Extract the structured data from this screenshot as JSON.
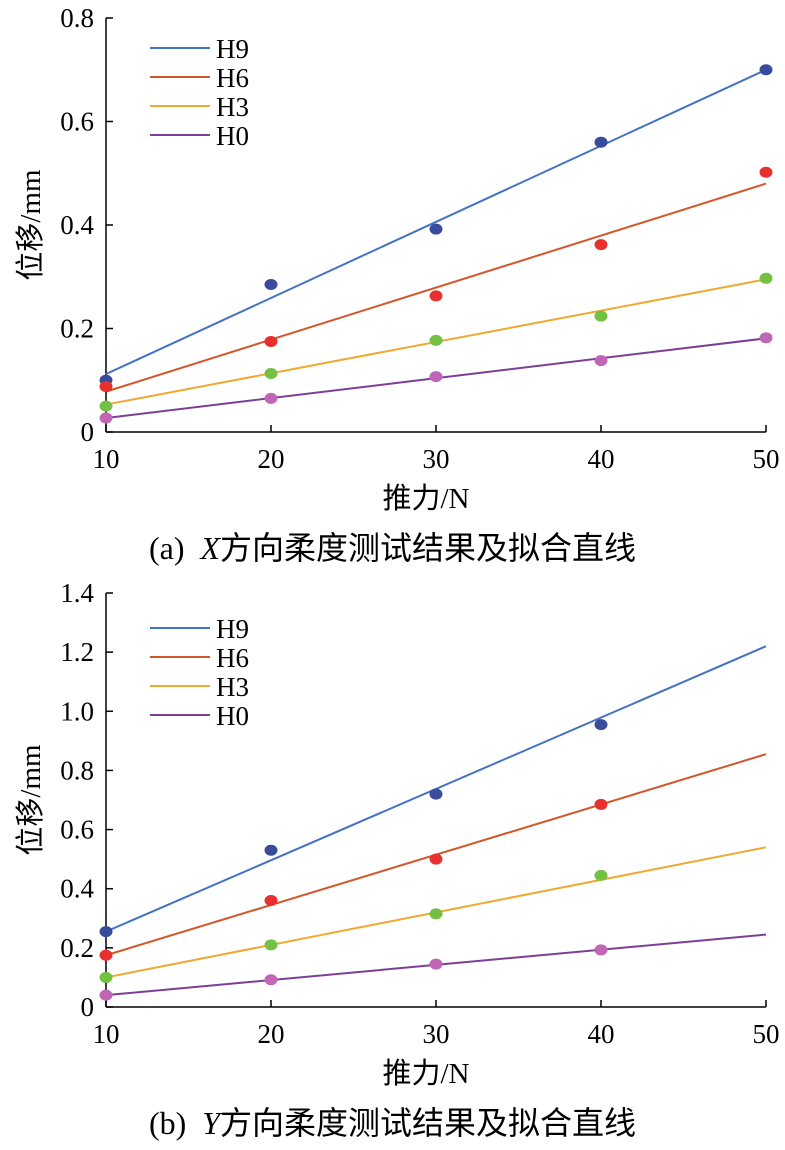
{
  "chart_data": [
    {
      "type": "line",
      "panel_label": "(a)",
      "caption_axis": "X",
      "caption_text": "方向柔度测试结果及拟合直线",
      "xlabel": "推力/N",
      "ylabel": "位移/mm",
      "xlim": [
        10,
        50
      ],
      "ylim": [
        0,
        0.8
      ],
      "xticks": [
        10,
        20,
        30,
        40,
        50
      ],
      "yticks": [
        0,
        0.2,
        0.4,
        0.6,
        0.8
      ],
      "ytick_labels": [
        "0",
        "0.2",
        "0.4",
        "0.6",
        "0.8"
      ],
      "legend_position": "top-left",
      "grid": false,
      "series": [
        {
          "name": "H9",
          "line_color": "#4472C4",
          "point_color": "#3A4A9C",
          "x": [
            10,
            20,
            30,
            40,
            50
          ],
          "points": [
            0.1,
            0.285,
            0.392,
            0.56,
            0.7
          ],
          "fit": [
            0.112,
            0.7
          ]
        },
        {
          "name": "H6",
          "line_color": "#D2572B",
          "point_color": "#E8302E",
          "x": [
            10,
            20,
            30,
            40,
            50
          ],
          "points": [
            0.088,
            0.175,
            0.263,
            0.362,
            0.502
          ],
          "fit": [
            0.078,
            0.48
          ]
        },
        {
          "name": "H3",
          "line_color": "#F0A830",
          "point_color": "#74C043",
          "x": [
            10,
            20,
            30,
            40,
            50
          ],
          "points": [
            0.05,
            0.113,
            0.177,
            0.224,
            0.297
          ],
          "fit": [
            0.053,
            0.295
          ]
        },
        {
          "name": "H0",
          "line_color": "#7B3F9A",
          "point_color": "#C165B5",
          "x": [
            10,
            20,
            30,
            40,
            50
          ],
          "points": [
            0.027,
            0.065,
            0.107,
            0.138,
            0.182
          ],
          "fit": [
            0.027,
            0.181
          ]
        }
      ]
    },
    {
      "type": "line",
      "panel_label": "(b)",
      "caption_axis": "Y",
      "caption_text": "方向柔度测试结果及拟合直线",
      "xlabel": "推力/N",
      "ylabel": "位移/mm",
      "xlim": [
        10,
        50
      ],
      "ylim": [
        0,
        1.4
      ],
      "xticks": [
        10,
        20,
        30,
        40,
        50
      ],
      "yticks": [
        0,
        0.2,
        0.4,
        0.6,
        0.8,
        1.0,
        1.2,
        1.4
      ],
      "ytick_labels": [
        "0",
        "0.2",
        "0.4",
        "0.6",
        "0.8",
        "1.0",
        "1.2",
        "1.4"
      ],
      "legend_position": "top-left",
      "grid": false,
      "series": [
        {
          "name": "H9",
          "line_color": "#4472C4",
          "point_color": "#3A4A9C",
          "x": [
            10,
            20,
            30,
            40
          ],
          "points": [
            0.255,
            0.53,
            0.72,
            0.955
          ],
          "fit": [
            0.255,
            1.22
          ]
        },
        {
          "name": "H6",
          "line_color": "#D2572B",
          "point_color": "#E8302E",
          "x": [
            10,
            20,
            30,
            40
          ],
          "points": [
            0.175,
            0.36,
            0.5,
            0.685
          ],
          "fit": [
            0.175,
            0.855
          ]
        },
        {
          "name": "H3",
          "line_color": "#F0A830",
          "point_color": "#74C043",
          "x": [
            10,
            20,
            30,
            40
          ],
          "points": [
            0.1,
            0.21,
            0.315,
            0.445
          ],
          "fit": [
            0.1,
            0.54
          ]
        },
        {
          "name": "H0",
          "line_color": "#7B3F9A",
          "point_color": "#C165B5",
          "x": [
            10,
            20,
            30,
            40
          ],
          "points": [
            0.04,
            0.092,
            0.145,
            0.193
          ],
          "fit": [
            0.04,
            0.245
          ]
        }
      ]
    }
  ]
}
